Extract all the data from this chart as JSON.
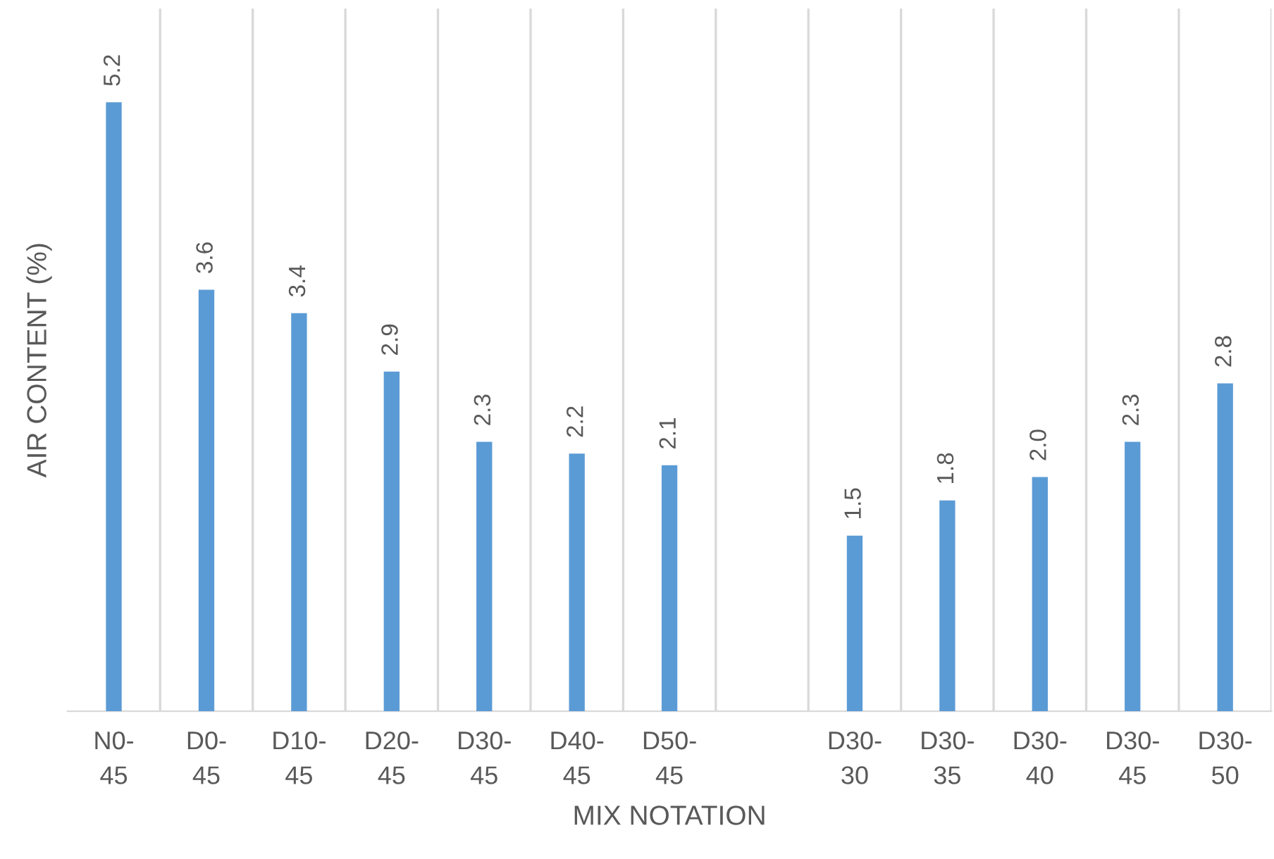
{
  "chart_data": {
    "type": "bar",
    "xlabel": "MIX NOTATION",
    "ylabel": "AIR CONTENT (%)",
    "categories": [
      "N0-45",
      "D0-45",
      "D10-45",
      "D20-45",
      "D30-45",
      "D40-45",
      "D50-45",
      null,
      "D30-30",
      "D30-35",
      "D30-40",
      "D30-45",
      "D30-50"
    ],
    "values": [
      5.2,
      3.6,
      3.4,
      2.9,
      2.3,
      2.2,
      2.1,
      null,
      1.5,
      1.8,
      2.0,
      2.3,
      2.8
    ],
    "value_labels": [
      "5.2",
      "3.6",
      "3.4",
      "2.9",
      "2.3",
      "2.2",
      "2.1",
      null,
      "1.5",
      "1.8",
      "2.0",
      "2.3",
      "2.8"
    ],
    "color": "#5b9bd5",
    "ylim": [
      0,
      6
    ],
    "grid": "x",
    "tick_labels": "x"
  }
}
